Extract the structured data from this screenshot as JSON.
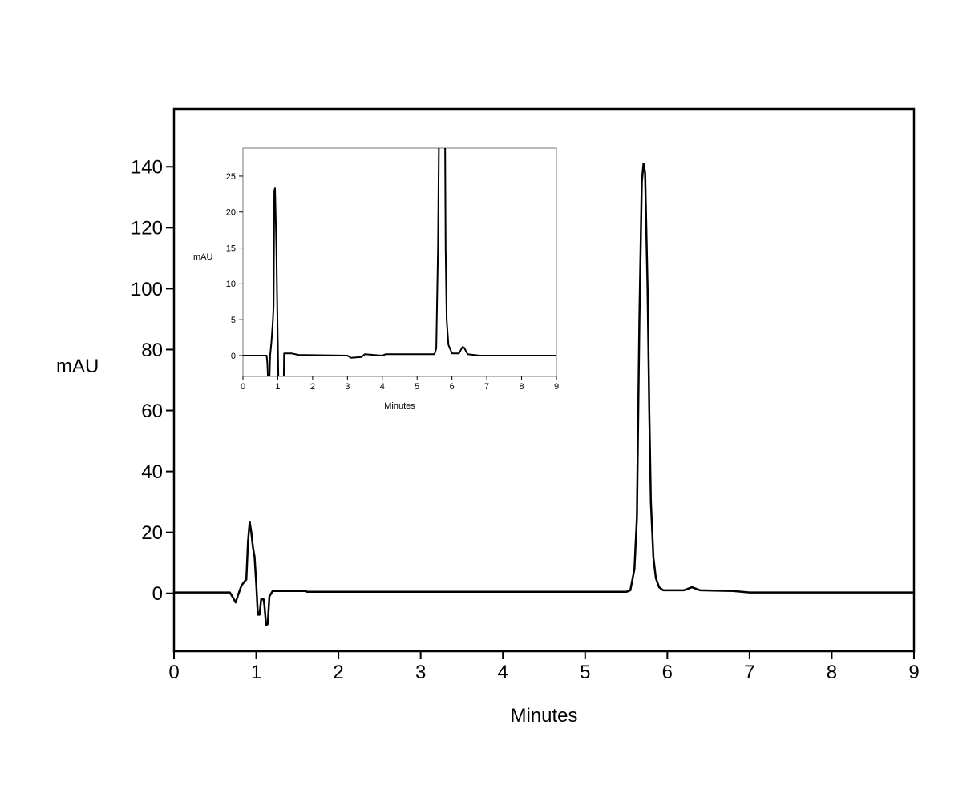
{
  "chart_data": [
    {
      "type": "line",
      "xlabel": "Minutes",
      "ylabel": "mAU",
      "xlim": [
        0,
        9
      ],
      "ylim": [
        -19,
        159
      ],
      "xticks": [
        0,
        1,
        2,
        3,
        4,
        5,
        6,
        7,
        8,
        9
      ],
      "yticks": [
        0,
        20,
        40,
        60,
        80,
        100,
        120,
        140
      ],
      "grid": false,
      "series": [
        {
          "x": [
            0,
            0.2,
            0.68,
            0.72,
            0.75,
            0.78,
            0.82,
            0.86,
            0.88,
            0.9,
            0.92,
            0.94,
            0.96,
            0.98,
            1.0,
            1.02,
            1.04,
            1.06,
            1.09,
            1.1,
            1.12,
            1.14,
            1.16,
            1.2,
            1.6,
            1.62,
            5.5,
            5.55,
            5.6,
            5.63,
            5.66,
            5.69,
            5.71,
            5.73,
            5.76,
            5.78,
            5.8,
            5.83,
            5.86,
            5.9,
            5.95,
            6.2,
            6.3,
            6.4,
            6.8,
            7,
            9
          ],
          "y": [
            0.3,
            0.3,
            0.3,
            -1.5,
            -3,
            -0.5,
            2.5,
            4,
            4.5,
            17,
            23.5,
            20,
            15,
            12,
            3,
            -7,
            -7,
            -2,
            -2,
            -4,
            -10.5,
            -10,
            -1,
            0.8,
            0.8,
            0.5,
            0.5,
            1,
            8,
            25,
            90,
            135,
            141,
            138,
            100,
            60,
            30,
            12,
            5,
            2,
            1,
            1,
            2,
            1,
            0.8,
            0.3,
            0.3
          ]
        }
      ]
    },
    {
      "type": "line",
      "inset": true,
      "xlabel": "Minutes",
      "ylabel": "mAU",
      "xlim": [
        0,
        9
      ],
      "ylim": [
        -2.9,
        28.9
      ],
      "xticks": [
        0,
        1,
        2,
        3,
        4,
        5,
        6,
        7,
        8,
        9
      ],
      "yticks": [
        0,
        5,
        10,
        15,
        20,
        25
      ],
      "grid": false,
      "series": [
        {
          "x": [
            0,
            0.68,
            0.7,
            0.72,
            0.76,
            0.78,
            0.82,
            0.86,
            0.88,
            0.9,
            0.92,
            0.96,
            0.98,
            1.02,
            1.1,
            1.17,
            1.18,
            1.4,
            1.6,
            3,
            3.1,
            3.4,
            3.5,
            4,
            4.1,
            5.5,
            5.55,
            5.6,
            5.63,
            5.8,
            5.82,
            5.85,
            5.9,
            6.0,
            6.2,
            6.3,
            6.35,
            6.45,
            6.8,
            9
          ],
          "y": [
            0,
            0,
            -1,
            -3.5,
            -3.5,
            0,
            2,
            5,
            7,
            23,
            23.3,
            15,
            8,
            -4,
            -4,
            -4,
            0.3,
            0.3,
            0.1,
            0,
            -0.3,
            -0.2,
            0.2,
            0,
            0.2,
            0.2,
            1,
            15,
            32,
            32,
            15,
            5,
            1.5,
            0.3,
            0.3,
            1.2,
            1.1,
            0.2,
            0,
            0
          ]
        }
      ]
    }
  ]
}
